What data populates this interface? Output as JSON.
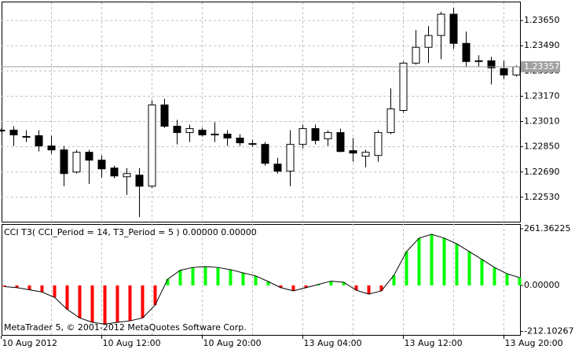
{
  "chart_data": [
    {
      "type": "candlestick",
      "categories": [
        "10 Aug 2012",
        null,
        null,
        null,
        null,
        null,
        null,
        null,
        "10 Aug 12:00",
        null,
        null,
        null,
        null,
        null,
        null,
        null,
        "10 Aug 20:00",
        null,
        null,
        null,
        null,
        null,
        null,
        null,
        "13 Aug 04:00",
        null,
        null,
        null,
        null,
        null,
        null,
        null,
        "13 Aug 12:00",
        null,
        null,
        null,
        null,
        null,
        null,
        null,
        "13 Aug 20:00",
        null
      ],
      "open": [
        1.22955,
        1.22955,
        1.22915,
        1.2292,
        1.22855,
        1.2283,
        1.2269,
        1.22815,
        1.22765,
        1.22715,
        1.2266,
        1.2267,
        1.226,
        1.23115,
        1.2298,
        1.2294,
        1.22955,
        1.2293,
        1.2293,
        1.22905,
        1.2287,
        1.22865,
        1.2274,
        1.22695,
        1.22865,
        1.22965,
        1.229,
        1.2294,
        1.22825,
        1.2279,
        1.22795,
        1.2294,
        1.2308,
        1.2338,
        1.2348,
        1.23555,
        1.2369,
        1.23505,
        1.23395,
        1.23395,
        1.23345,
        1.23305
      ],
      "high": [
        1.22965,
        1.2298,
        1.22955,
        1.22955,
        1.2292,
        1.22855,
        1.2283,
        1.2283,
        1.22795,
        1.2273,
        1.22715,
        1.22715,
        1.23145,
        1.23155,
        1.2302,
        1.2299,
        1.2297,
        1.23005,
        1.22955,
        1.2293,
        1.22895,
        1.2288,
        1.2278,
        1.22955,
        1.2299,
        1.2299,
        1.22955,
        1.22965,
        1.22905,
        1.2283,
        1.22955,
        1.2322,
        1.2339,
        1.2359,
        1.23615,
        1.23705,
        1.2373,
        1.2358,
        1.2343,
        1.2342,
        1.23395,
        1.23365
      ],
      "low": [
        1.22945,
        1.22855,
        1.2288,
        1.2282,
        1.22805,
        1.226,
        1.2268,
        1.22615,
        1.22655,
        1.2265,
        1.22545,
        1.22405,
        1.2259,
        1.2297,
        1.22865,
        1.2288,
        1.22915,
        1.2288,
        1.22855,
        1.22855,
        1.2285,
        1.2273,
        1.2268,
        1.226,
        1.2284,
        1.22865,
        1.22855,
        1.22815,
        1.22755,
        1.2272,
        1.22755,
        1.2293,
        1.23065,
        1.2337,
        1.2338,
        1.23405,
        1.2347,
        1.23355,
        1.23355,
        1.23245,
        1.2328,
        1.23295
      ],
      "close": [
        1.2295,
        1.22925,
        1.2291,
        1.22855,
        1.2283,
        1.2268,
        1.22815,
        1.22765,
        1.2271,
        1.22665,
        1.2268,
        1.226,
        1.23115,
        1.2298,
        1.2294,
        1.22965,
        1.22925,
        1.22925,
        1.22905,
        1.22875,
        1.22865,
        1.22745,
        1.22695,
        1.22865,
        1.22965,
        1.2289,
        1.2294,
        1.2282,
        1.2281,
        1.22815,
        1.2294,
        1.2309,
        1.2338,
        1.2348,
        1.23555,
        1.2369,
        1.23505,
        1.2339,
        1.2339,
        1.2335,
        1.23305,
        1.23357
      ],
      "colors": {
        "up": "#ffffff",
        "down": "#000000",
        "wick": "#000000"
      },
      "bid": {
        "value": 1.23357,
        "label": "1.23357"
      },
      "ylim": [
        1.2238,
        1.23765
      ],
      "yticks": [
        {
          "value": 1.2253,
          "label": "1.22530"
        },
        {
          "value": 1.2269,
          "label": "1.22690"
        },
        {
          "value": 1.2285,
          "label": "1.22850"
        },
        {
          "value": 1.2301,
          "label": "1.23010"
        },
        {
          "value": 1.2317,
          "label": "1.23170"
        },
        {
          "value": 1.2333,
          "label": "1.23330"
        },
        {
          "value": 1.2349,
          "label": "1.23490"
        },
        {
          "value": 1.2365,
          "label": "1.23650"
        }
      ],
      "grid": true
    },
    {
      "type": "histogram",
      "title": "CCI T3( CCI_Period = 14, T3_Period = 5 ) 0.00000 0.00000",
      "annotation": "MetaTrader 5, © 2001-2012 MetaQuotes Software Corp.",
      "values": [
        -5,
        -10,
        -20,
        -30,
        -55,
        -110,
        -150,
        -170,
        -178,
        -170,
        -163,
        -150,
        -90,
        29,
        70,
        83,
        87,
        83,
        73,
        58,
        44,
        18,
        -10,
        -25,
        -10,
        5,
        20,
        15,
        -22,
        -40,
        -25,
        47,
        156,
        218,
        236,
        218,
        192,
        156,
        120,
        83,
        54,
        36
      ],
      "colors": {
        "positive": "#00ff00",
        "negative": "#ff0000",
        "line": "#000000"
      },
      "ylim": [
        -228,
        283
      ],
      "yticks": [
        {
          "value": 261.36225,
          "label": "261.36225"
        },
        {
          "value": 0,
          "label": "0.00000"
        },
        {
          "value": -212.10267,
          "label": "-212.10267"
        }
      ],
      "grid": true
    }
  ]
}
